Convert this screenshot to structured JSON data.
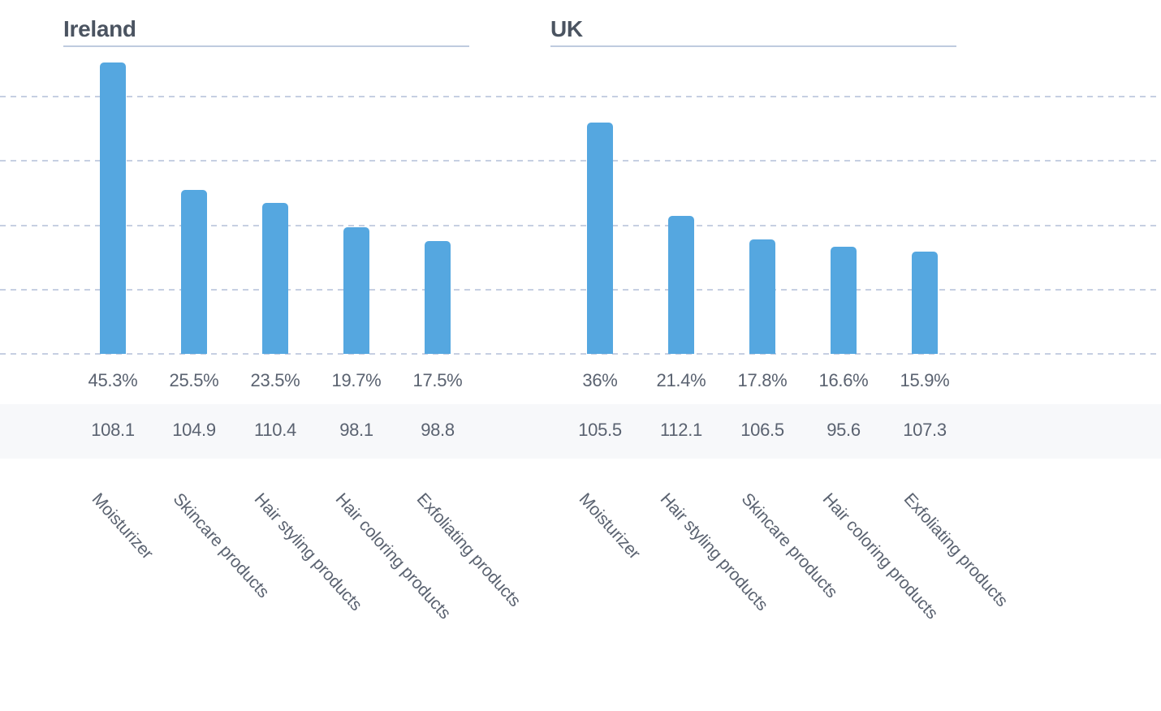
{
  "colors": {
    "bar": "#55a7e0",
    "gridline": "#c6cfe2",
    "title_underline": "#bfcbdf",
    "title_text": "#4b5461",
    "label_text": "#5a6270",
    "band_bg": "#f7f8fa",
    "background": "#ffffff"
  },
  "chart_data": [
    {
      "type": "bar",
      "title": "Ireland",
      "categories": [
        "Moisturizer",
        "Skincare products",
        "Hair styling products",
        "Hair coloring products",
        "Exfoliating products"
      ],
      "values": [
        45.3,
        25.5,
        23.5,
        19.7,
        17.5
      ],
      "value_labels": [
        "45.3%",
        "25.5%",
        "23.5%",
        "19.7%",
        "17.5%"
      ],
      "index_values": [
        "108.1",
        "104.9",
        "110.4",
        "98.1",
        "98.8"
      ],
      "xlabel": "",
      "ylabel": "",
      "ylim": [
        0,
        46
      ],
      "y_gridlines": [
        0,
        10,
        20,
        30,
        40
      ],
      "grid": "dashed-horizontal",
      "legend": "none"
    },
    {
      "type": "bar",
      "title": "UK",
      "categories": [
        "Moisturizer",
        "Hair styling products",
        "Skincare products",
        "Hair coloring products",
        "Exfoliating products"
      ],
      "values": [
        36,
        21.4,
        17.8,
        16.6,
        15.9
      ],
      "value_labels": [
        "36%",
        "21.4%",
        "17.8%",
        "16.6%",
        "15.9%"
      ],
      "index_values": [
        "105.5",
        "112.1",
        "106.5",
        "95.6",
        "107.3"
      ],
      "xlabel": "",
      "ylabel": "",
      "ylim": [
        0,
        46
      ],
      "y_gridlines": [
        0,
        10,
        20,
        30,
        40
      ],
      "grid": "dashed-horizontal",
      "legend": "none"
    }
  ]
}
